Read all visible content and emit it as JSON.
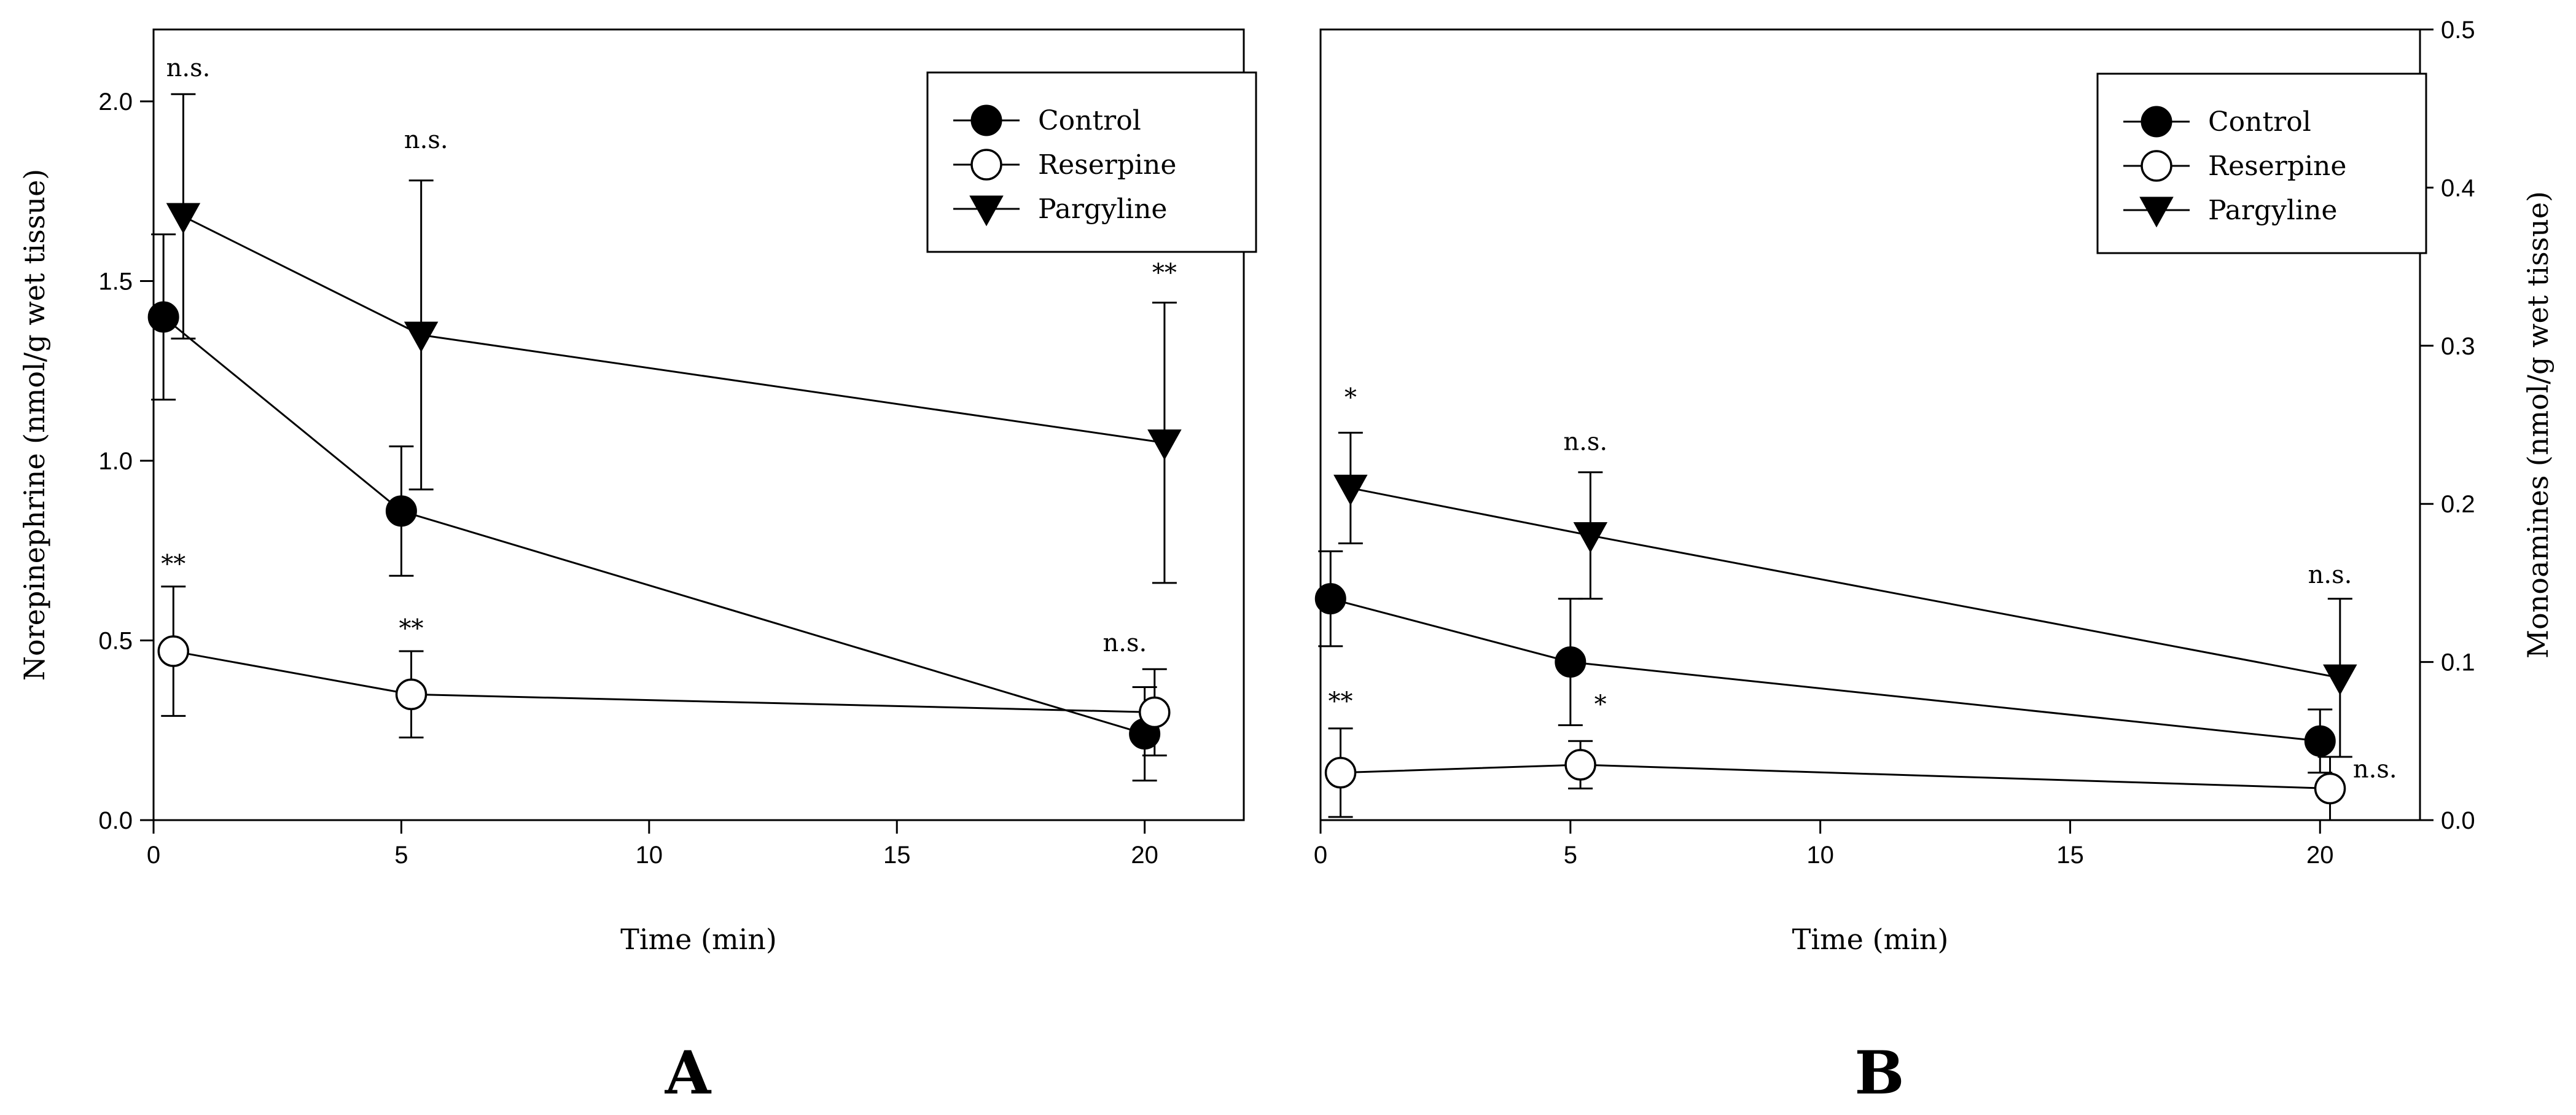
{
  "figure": {
    "panel_labels": [
      "A",
      "B"
    ]
  },
  "chart_data": [
    {
      "type": "line",
      "panel": "A",
      "title": "",
      "xlabel": "Time (min)",
      "ylabel": "Norepinephrine (nmol/g wet tissue)",
      "xlim": [
        0,
        22
      ],
      "ylim": [
        0,
        2.2
      ],
      "xticks": [
        0,
        5,
        10,
        15,
        20
      ],
      "yticks": [
        0.0,
        0.5,
        1.0,
        1.5,
        2.0
      ],
      "ytick_labels": [
        "0.0",
        "0.5",
        "1.0",
        "1.5",
        "2.0"
      ],
      "legend": {
        "position": "top-right",
        "entries": [
          "Control",
          "Reserpine",
          "Pargyline"
        ]
      },
      "series": [
        {
          "name": "Control",
          "marker": "filled-circle",
          "x": [
            0.2,
            5,
            20
          ],
          "y": [
            1.4,
            0.86,
            0.24
          ],
          "err": [
            0.23,
            0.18,
            0.13
          ]
        },
        {
          "name": "Reserpine",
          "marker": "open-circle",
          "x": [
            0.4,
            5.2,
            20.2
          ],
          "y": [
            0.47,
            0.35,
            0.3
          ],
          "err": [
            0.18,
            0.12,
            0.12
          ]
        },
        {
          "name": "Pargyline",
          "marker": "filled-triangle-down",
          "x": [
            0.6,
            5.4,
            20.4
          ],
          "y": [
            1.68,
            1.35,
            1.05
          ],
          "err": [
            0.34,
            0.43,
            0.39
          ]
        }
      ],
      "annotations": [
        {
          "text": "n.s.",
          "x": 0.7,
          "y": 2.07
        },
        {
          "text": "n.s.",
          "x": 5.5,
          "y": 1.87
        },
        {
          "text": "**",
          "x": 20.4,
          "y": 1.5
        },
        {
          "text": "**",
          "x": 0.4,
          "y": 0.69
        },
        {
          "text": "**",
          "x": 5.2,
          "y": 0.51
        },
        {
          "text": "n.s.",
          "x": 19.6,
          "y": 0.47
        }
      ]
    },
    {
      "type": "line",
      "panel": "B",
      "title": "",
      "xlabel": "Time (min)",
      "ylabel": "Monoamines (nmol/g wet tissue)",
      "y_axis_side": "right",
      "xlim": [
        0,
        22
      ],
      "ylim": [
        0,
        0.5
      ],
      "xticks": [
        0,
        5,
        10,
        15,
        20
      ],
      "yticks": [
        0.0,
        0.1,
        0.2,
        0.3,
        0.4,
        0.5
      ],
      "ytick_labels": [
        "0.0",
        "0.1",
        "0.2",
        "0.3",
        "0.4",
        "0.5"
      ],
      "legend": {
        "position": "top-right",
        "entries": [
          "Control",
          "Reserpine",
          "Pargyline"
        ]
      },
      "series": [
        {
          "name": "Control",
          "marker": "filled-circle",
          "x": [
            0.2,
            5,
            20
          ],
          "y": [
            0.14,
            0.1,
            0.05
          ],
          "err": [
            0.03,
            0.04,
            0.02
          ]
        },
        {
          "name": "Reserpine",
          "marker": "open-circle",
          "x": [
            0.4,
            5.2,
            20.2
          ],
          "y": [
            0.03,
            0.035,
            0.02
          ],
          "err": [
            0.028,
            0.015,
            0.02
          ]
        },
        {
          "name": "Pargyline",
          "marker": "filled-triangle-down",
          "x": [
            0.6,
            5.4,
            20.4
          ],
          "y": [
            0.21,
            0.18,
            0.09
          ],
          "err": [
            0.035,
            0.04,
            0.05
          ]
        }
      ],
      "annotations": [
        {
          "text": "*",
          "x": 0.6,
          "y": 0.262
        },
        {
          "text": "n.s.",
          "x": 5.3,
          "y": 0.234
        },
        {
          "text": "n.s.",
          "x": 20.2,
          "y": 0.15
        },
        {
          "text": "**",
          "x": 0.4,
          "y": 0.07
        },
        {
          "text": "*",
          "x": 5.6,
          "y": 0.068
        },
        {
          "text": "n.s.",
          "x": 21.1,
          "y": 0.027
        }
      ]
    }
  ]
}
